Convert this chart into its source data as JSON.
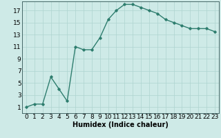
{
  "x": [
    0,
    1,
    2,
    3,
    4,
    5,
    6,
    7,
    8,
    9,
    10,
    11,
    12,
    13,
    14,
    15,
    16,
    17,
    18,
    19,
    20,
    21,
    22,
    23
  ],
  "y": [
    1,
    1.5,
    1.5,
    6,
    4,
    2,
    11,
    10.5,
    10.5,
    12.5,
    15.5,
    17,
    18,
    18,
    17.5,
    17,
    16.5,
    15.5,
    15,
    14.5,
    14,
    14,
    14,
    13.5
  ],
  "line_color": "#2e7d6e",
  "marker": "D",
  "marker_size": 1.8,
  "bg_color": "#ceeae7",
  "grid_color": "#aed4d0",
  "xlabel": "Humidex (Indice chaleur)",
  "xlim": [
    -0.5,
    23.5
  ],
  "ylim": [
    0,
    18.5
  ],
  "yticks": [
    1,
    3,
    5,
    7,
    9,
    11,
    13,
    15,
    17
  ],
  "xticks": [
    0,
    1,
    2,
    3,
    4,
    5,
    6,
    7,
    8,
    9,
    10,
    11,
    12,
    13,
    14,
    15,
    16,
    17,
    18,
    19,
    20,
    21,
    22,
    23
  ],
  "linewidth": 1.0,
  "font_size": 6.5
}
